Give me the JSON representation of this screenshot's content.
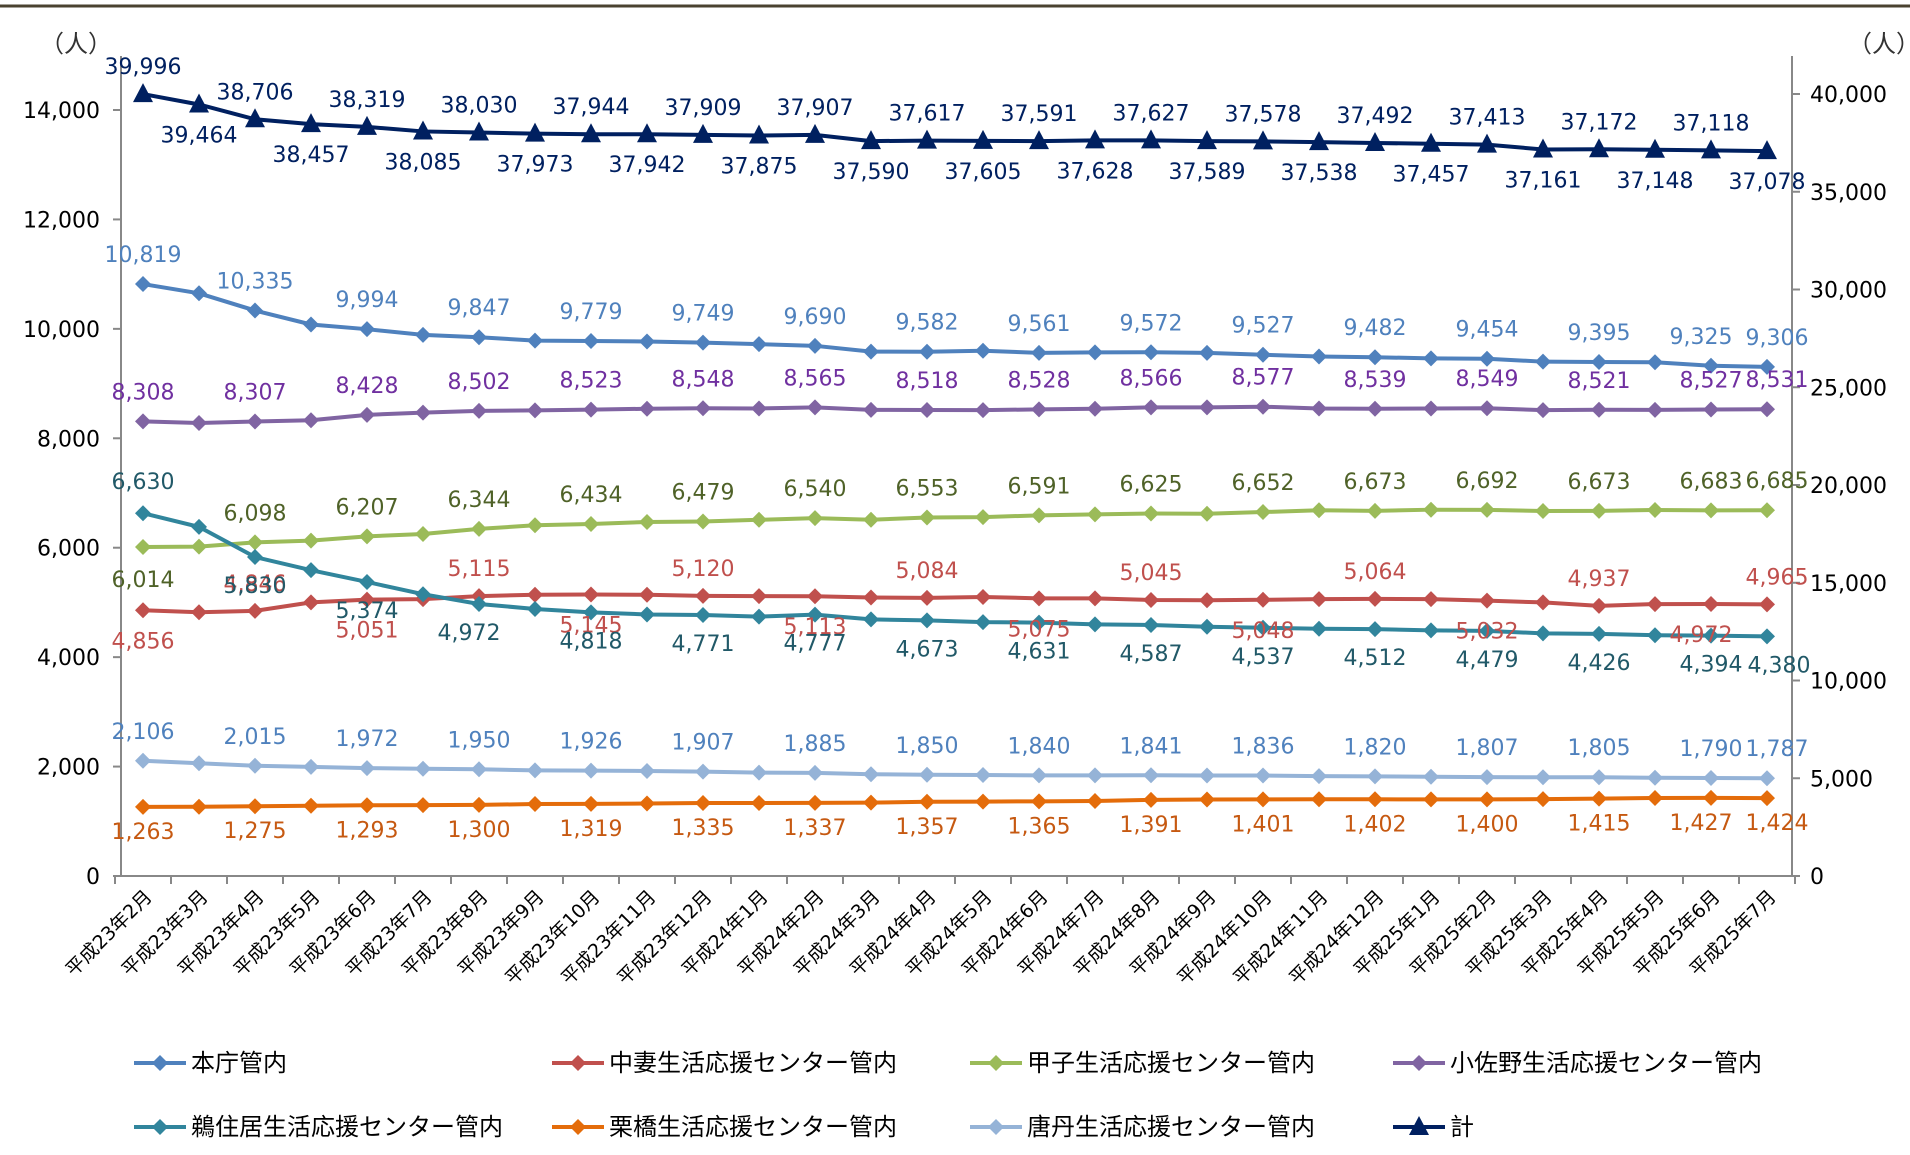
{
  "chart_data": {
    "type": "line",
    "y_unit_left": "（人）",
    "y_unit_right": "（人）",
    "ylim_left": [
      0,
      14000
    ],
    "ylim_right": [
      0,
      40000
    ],
    "y_ticks_left": [
      "0",
      "2,000",
      "4,000",
      "6,000",
      "8,000",
      "10,000",
      "12,000",
      "14,000"
    ],
    "y_ticks_right": [
      "0",
      "5,000",
      "10,000",
      "15,000",
      "20,000",
      "25,000",
      "30,000",
      "35,000",
      "40,000"
    ],
    "grid": false,
    "legend_position": "bottom",
    "categories": [
      "平成23年2月",
      "平成23年3月",
      "平成23年4月",
      "平成23年5月",
      "平成23年6月",
      "平成23年7月",
      "平成23年8月",
      "平成23年9月",
      "平成23年10月",
      "平成23年11月",
      "平成23年12月",
      "平成24年1月",
      "平成24年2月",
      "平成24年3月",
      "平成24年4月",
      "平成24年5月",
      "平成24年6月",
      "平成24年7月",
      "平成24年8月",
      "平成24年9月",
      "平成24年10月",
      "平成24年11月",
      "平成24年12月",
      "平成25年1月",
      "平成25年2月",
      "平成25年3月",
      "平成25年4月",
      "平成25年5月",
      "平成25年6月",
      "平成25年7月"
    ],
    "series": [
      {
        "name": "本庁管内",
        "axis": "left",
        "marker": "diamond",
        "color": "#4F81BD",
        "values": [
          10819,
          10650,
          10335,
          10080,
          9994,
          9890,
          9847,
          9785,
          9779,
          9770,
          9749,
          9720,
          9690,
          9585,
          9582,
          9600,
          9561,
          9570,
          9572,
          9560,
          9527,
          9495,
          9482,
          9460,
          9454,
          9400,
          9395,
          9390,
          9325,
          9306
        ],
        "label_idx": [
          0,
          2,
          4,
          6,
          8,
          10,
          12,
          14,
          16,
          18,
          20,
          22,
          24,
          26,
          28,
          29
        ]
      },
      {
        "name": "中妻生活応援センター管内",
        "axis": "left",
        "marker": "diamond",
        "color": "#C0504D",
        "values": [
          4856,
          4820,
          4846,
          5000,
          5051,
          5060,
          5115,
          5140,
          5145,
          5140,
          5120,
          5115,
          5113,
          5090,
          5084,
          5100,
          5075,
          5075,
          5045,
          5040,
          5048,
          5060,
          5064,
          5060,
          5032,
          5000,
          4937,
          4970,
          4972,
          4965
        ],
        "label_idx": [
          0,
          2,
          4,
          6,
          8,
          10,
          12,
          14,
          16,
          18,
          20,
          22,
          24,
          26,
          28,
          29
        ]
      },
      {
        "name": "甲子生活応援センター管内",
        "axis": "left",
        "marker": "diamond",
        "color": "#9BBB59",
        "values": [
          6014,
          6020,
          6098,
          6130,
          6207,
          6250,
          6344,
          6410,
          6434,
          6470,
          6479,
          6510,
          6540,
          6510,
          6553,
          6560,
          6591,
          6610,
          6625,
          6620,
          6652,
          6685,
          6673,
          6695,
          6692,
          6670,
          6673,
          6690,
          6683,
          6685
        ],
        "label_idx": [
          0,
          2,
          4,
          6,
          8,
          10,
          12,
          14,
          16,
          18,
          20,
          22,
          24,
          26,
          28,
          29
        ]
      },
      {
        "name": "小佐野生活応援センター管内",
        "axis": "left",
        "marker": "diamond",
        "color": "#8064A2",
        "values": [
          8308,
          8280,
          8307,
          8330,
          8428,
          8470,
          8502,
          8510,
          8523,
          8540,
          8548,
          8545,
          8565,
          8520,
          8518,
          8515,
          8528,
          8540,
          8566,
          8565,
          8577,
          8545,
          8539,
          8545,
          8549,
          8515,
          8521,
          8520,
          8527,
          8531
        ],
        "label_idx": [
          0,
          2,
          4,
          6,
          8,
          10,
          12,
          14,
          16,
          18,
          20,
          22,
          24,
          26,
          28,
          29
        ]
      },
      {
        "name": "鵜住居生活応援センター管内",
        "axis": "left",
        "marker": "diamond",
        "color": "#31859C",
        "values": [
          6630,
          6380,
          5830,
          5590,
          5374,
          5150,
          4972,
          4880,
          4818,
          4780,
          4771,
          4740,
          4777,
          4690,
          4673,
          4640,
          4631,
          4600,
          4587,
          4555,
          4537,
          4520,
          4512,
          4490,
          4479,
          4435,
          4426,
          4400,
          4394,
          4380
        ],
        "label_idx": [
          0,
          2,
          4,
          6,
          8,
          10,
          12,
          14,
          16,
          18,
          20,
          22,
          24,
          26,
          28,
          29
        ]
      },
      {
        "name": "栗橋生活応援センター管内",
        "axis": "left",
        "marker": "diamond",
        "color": "#E46C0A",
        "values": [
          1263,
          1265,
          1275,
          1285,
          1293,
          1295,
          1300,
          1315,
          1319,
          1325,
          1335,
          1335,
          1337,
          1340,
          1357,
          1360,
          1365,
          1370,
          1391,
          1398,
          1401,
          1402,
          1402,
          1400,
          1400,
          1405,
          1415,
          1425,
          1427,
          1424
        ],
        "label_idx": [
          0,
          2,
          4,
          6,
          8,
          10,
          12,
          14,
          16,
          18,
          20,
          22,
          24,
          26,
          28,
          29
        ]
      },
      {
        "name": "唐丹生活応援センター管内",
        "axis": "left",
        "marker": "diamond",
        "color": "#95B3D7",
        "values": [
          2106,
          2060,
          2015,
          1995,
          1972,
          1960,
          1950,
          1930,
          1926,
          1920,
          1907,
          1890,
          1885,
          1860,
          1850,
          1845,
          1840,
          1838,
          1841,
          1836,
          1836,
          1825,
          1820,
          1815,
          1807,
          1805,
          1805,
          1795,
          1790,
          1787
        ],
        "label_idx": [
          0,
          2,
          4,
          6,
          8,
          10,
          12,
          14,
          16,
          18,
          20,
          22,
          24,
          26,
          28,
          29
        ]
      },
      {
        "name": "計",
        "axis": "right",
        "marker": "triangle",
        "color": "#002060",
        "values": [
          39996,
          39464,
          38706,
          38457,
          38319,
          38085,
          38030,
          37973,
          37944,
          37942,
          37909,
          37875,
          37907,
          37590,
          37617,
          37605,
          37591,
          37628,
          37627,
          37589,
          37578,
          37538,
          37492,
          37457,
          37413,
          37161,
          37172,
          37148,
          37118,
          37078
        ],
        "label_idx": [
          0,
          1,
          2,
          3,
          4,
          5,
          6,
          7,
          8,
          9,
          10,
          11,
          12,
          13,
          14,
          15,
          16,
          17,
          18,
          19,
          20,
          21,
          22,
          23,
          24,
          25,
          26,
          27,
          28,
          29
        ]
      }
    ],
    "data_labels": [
      [
        "10,819",
        "",
        "10,335",
        "",
        "9,994",
        "",
        "9,847",
        "",
        "9,779",
        "",
        "9,749",
        "",
        "9,690",
        "",
        "9,582",
        "",
        "9,561",
        "",
        "9,572",
        "",
        "9,527",
        "",
        "9,482",
        "",
        "9,454",
        "",
        "9,395",
        "",
        "9,325",
        "9,306"
      ],
      [
        "4,856",
        "",
        "4,846",
        "",
        "5,051",
        "",
        "5,115",
        "",
        "5,145",
        "",
        "5,120",
        "",
        "5,113",
        "",
        "5,084",
        "",
        "5,075",
        "",
        "5,045",
        "",
        "5,048",
        "",
        "5,064",
        "",
        "5,032",
        "",
        "4,937",
        "",
        "4,972",
        "4,965"
      ],
      [
        "6,014",
        "",
        "6,098",
        "",
        "6,207",
        "",
        "6,344",
        "",
        "6,434",
        "",
        "6,479",
        "",
        "6,540",
        "",
        "6,553",
        "",
        "6,591",
        "",
        "6,625",
        "",
        "6,652",
        "",
        "6,673",
        "",
        "6,692",
        "",
        "6,673",
        "",
        "6,683",
        "6,685"
      ],
      [
        "8,308",
        "",
        "8,307",
        "",
        "8,428",
        "",
        "8,502",
        "",
        "8,523",
        "",
        "8,548",
        "",
        "8,565",
        "",
        "8,518",
        "",
        "8,528",
        "",
        "8,566",
        "",
        "8,577",
        "",
        "8,539",
        "",
        "8,549",
        "",
        "8,521",
        "",
        "8,527",
        "8,531"
      ],
      [
        "6,630",
        "",
        "5,830",
        "",
        "5,374",
        "",
        "4,972",
        "",
        "4,818",
        "",
        "4,771",
        "",
        "4,777",
        "",
        "4,673",
        "",
        "4,631",
        "",
        "4,587",
        "",
        "4,537",
        "",
        "4,512",
        "",
        "4,479",
        "",
        "4,426",
        "",
        "4,394",
        "4,380"
      ],
      [
        "1,263",
        "",
        "1,275",
        "",
        "1,293",
        "",
        "1,300",
        "",
        "1,319",
        "",
        "1,335",
        "",
        "1,337",
        "",
        "1,357",
        "",
        "1,365",
        "",
        "1,391",
        "",
        "1,401",
        "",
        "1,402",
        "",
        "1,400",
        "",
        "1,415",
        "",
        "1,427",
        "1,424"
      ],
      [
        "2,106",
        "",
        "2,015",
        "",
        "1,972",
        "",
        "1,950",
        "",
        "1,926",
        "",
        "1,907",
        "",
        "1,885",
        "",
        "1,850",
        "",
        "1,840",
        "",
        "1,841",
        "",
        "1,836",
        "",
        "1,820",
        "",
        "1,807",
        "",
        "1,805",
        "",
        "1,790",
        "1,787"
      ],
      [
        "39,996",
        "39,464",
        "38,706",
        "38,457",
        "38,319",
        "38,085",
        "38,030",
        "37,973",
        "37,944",
        "37,942",
        "37,909",
        "37,875",
        "37,907",
        "37,590",
        "37,617",
        "37,605",
        "37,591",
        "37,628",
        "37,627",
        "37,589",
        "37,578",
        "37,538",
        "37,492",
        "37,457",
        "37,413",
        "37,161",
        "37,172",
        "37,148",
        "37,118",
        "37,078"
      ]
    ]
  }
}
